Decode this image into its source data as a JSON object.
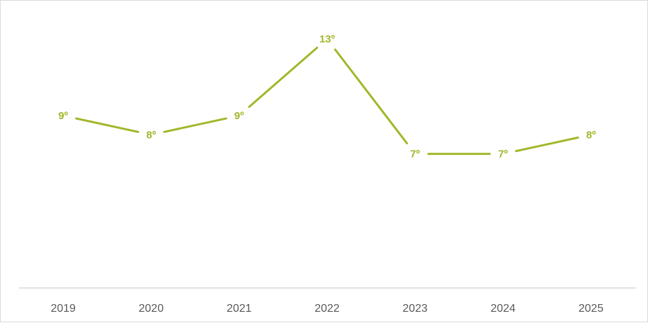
{
  "chart_data": {
    "type": "line",
    "categories": [
      "2019",
      "2020",
      "2021",
      "2022",
      "2023",
      "2024",
      "2025"
    ],
    "series": [
      {
        "values": [
          9,
          8,
          9,
          13,
          7,
          7,
          8
        ],
        "labels": [
          "9º",
          "8º",
          "9º",
          "13º",
          "7º",
          "7º",
          "8º"
        ]
      }
    ],
    "ylim": [
      0,
      15
    ],
    "grid": false,
    "legend": "none",
    "colors": {
      "line": "#A4B62A",
      "axis": "#d9d9d9",
      "tick_text": "#595959"
    }
  }
}
